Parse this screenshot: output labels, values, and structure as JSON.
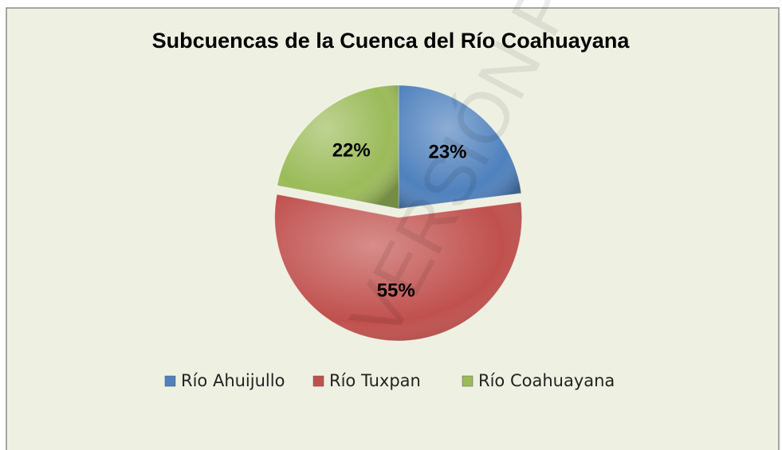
{
  "chart_data": {
    "type": "pie",
    "title": "Subcuencas de la Cuenca del Río Coahuayana",
    "categories": [
      "Río Ahuijullo",
      "Río Tuxpan",
      "Río Coahuayana"
    ],
    "values": [
      23,
      55,
      22
    ],
    "value_labels": [
      "23%",
      "55%",
      "22%"
    ],
    "colors": [
      "#4f81bd",
      "#c0504d",
      "#9bbb59"
    ],
    "legend": "bottom",
    "watermark": "VERSIÓN PREL"
  }
}
